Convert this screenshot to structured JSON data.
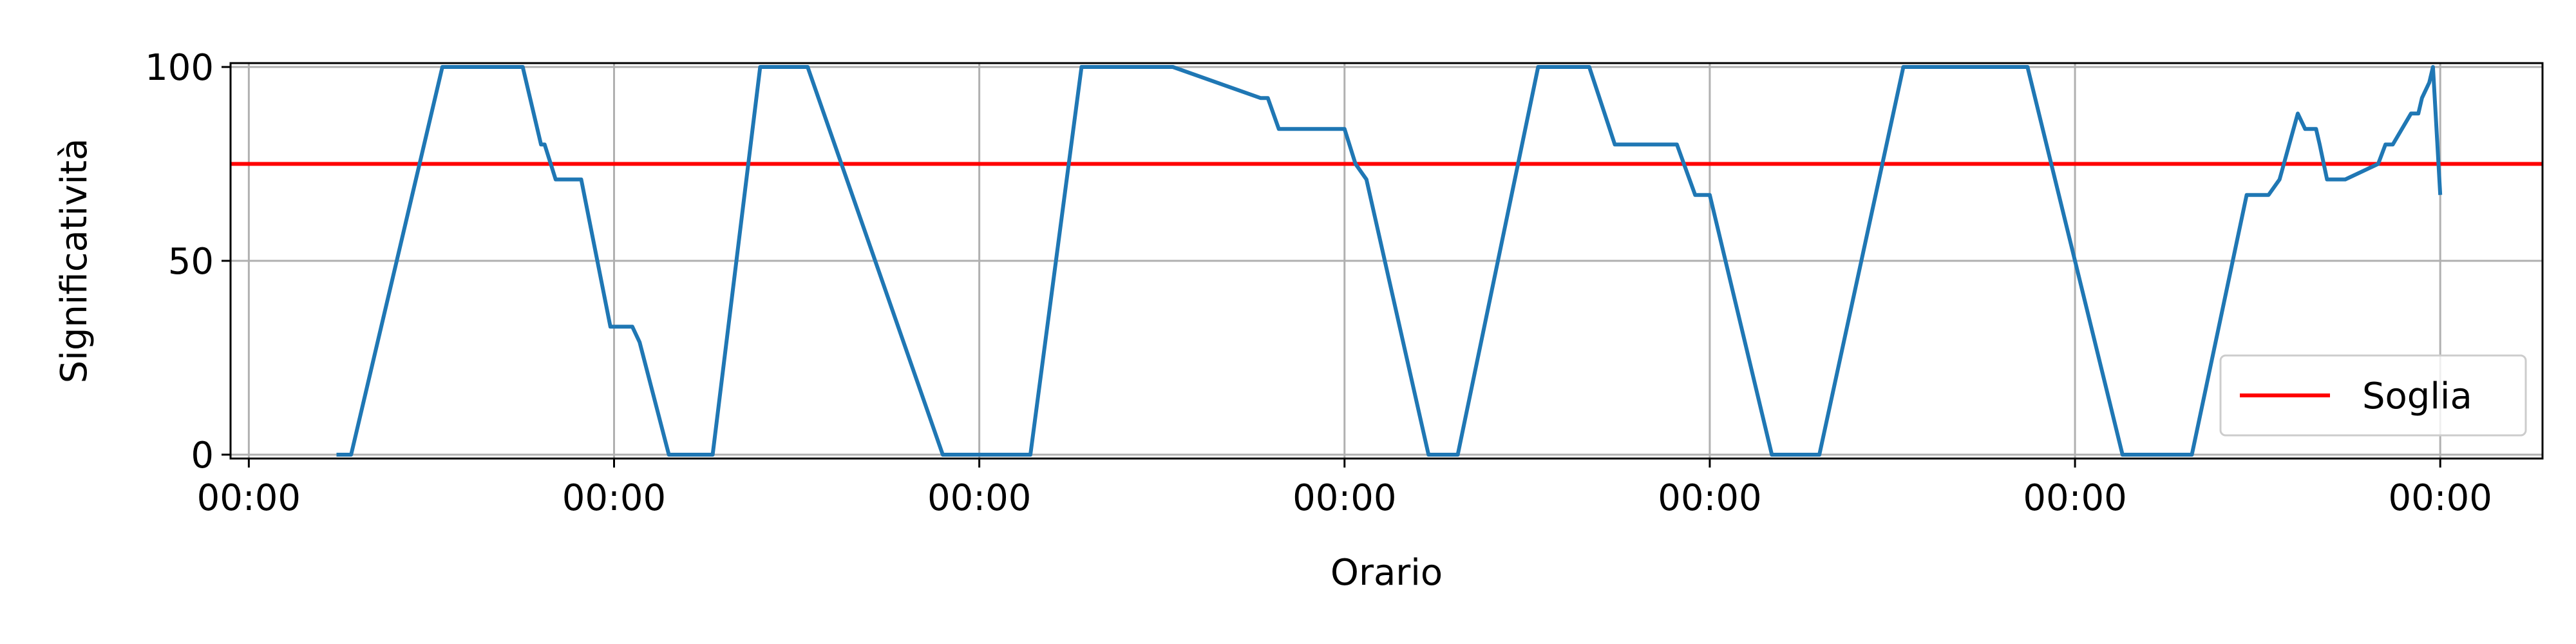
{
  "chart_data": {
    "type": "line",
    "title": "",
    "xlabel": "Orario",
    "ylabel": "Significatività",
    "xlim": [
      -0.05,
      6.28
    ],
    "ylim": [
      -1,
      101
    ],
    "grid": true,
    "legend": {
      "position": "lower-right",
      "entries": [
        {
          "label": "Soglia",
          "color": "#ff0000"
        }
      ]
    },
    "x_ticks": [
      {
        "value": 0,
        "label": "00:00"
      },
      {
        "value": 1,
        "label": "00:00"
      },
      {
        "value": 2,
        "label": "00:00"
      },
      {
        "value": 3,
        "label": "00:00"
      },
      {
        "value": 4,
        "label": "00:00"
      },
      {
        "value": 5,
        "label": "00:00"
      },
      {
        "value": 6,
        "label": "00:00"
      }
    ],
    "y_ticks": [
      {
        "value": 0,
        "label": "0"
      },
      {
        "value": 50,
        "label": "50"
      },
      {
        "value": 100,
        "label": "100"
      }
    ],
    "threshold": {
      "name": "Soglia",
      "value": 75,
      "color": "#ff0000"
    },
    "series": [
      {
        "name": "Significatività",
        "color": "#1f77b4",
        "x": [
          0.24,
          0.28,
          0.53,
          0.75,
          0.8,
          0.81,
          0.84,
          0.91,
          0.99,
          1.05,
          1.07,
          1.15,
          1.27,
          1.4,
          1.53,
          1.9,
          2.14,
          2.28,
          2.53,
          2.77,
          2.79,
          2.82,
          3.0,
          3.03,
          3.06,
          3.23,
          3.31,
          3.53,
          3.67,
          3.74,
          3.91,
          3.96,
          4.0,
          4.17,
          4.3,
          4.53,
          4.87,
          5.13,
          5.32,
          5.47,
          5.53,
          5.56,
          5.61,
          5.63,
          5.66,
          5.67,
          5.69,
          5.74,
          5.83,
          5.85,
          5.87,
          5.92,
          5.94,
          5.95,
          5.97,
          5.98,
          6.0
        ],
        "y": [
          0,
          0,
          100,
          100,
          80,
          80,
          71,
          71,
          33,
          33,
          29,
          0,
          0,
          100,
          100,
          0,
          0,
          100,
          100,
          92,
          92,
          84,
          84,
          75,
          71,
          0,
          0,
          100,
          100,
          80,
          80,
          67,
          67,
          0,
          0,
          100,
          100,
          0,
          0,
          67,
          67,
          71,
          88,
          84,
          84,
          80,
          71,
          71,
          75,
          80,
          80,
          88,
          88,
          92,
          96,
          100,
          67
        ]
      }
    ]
  }
}
